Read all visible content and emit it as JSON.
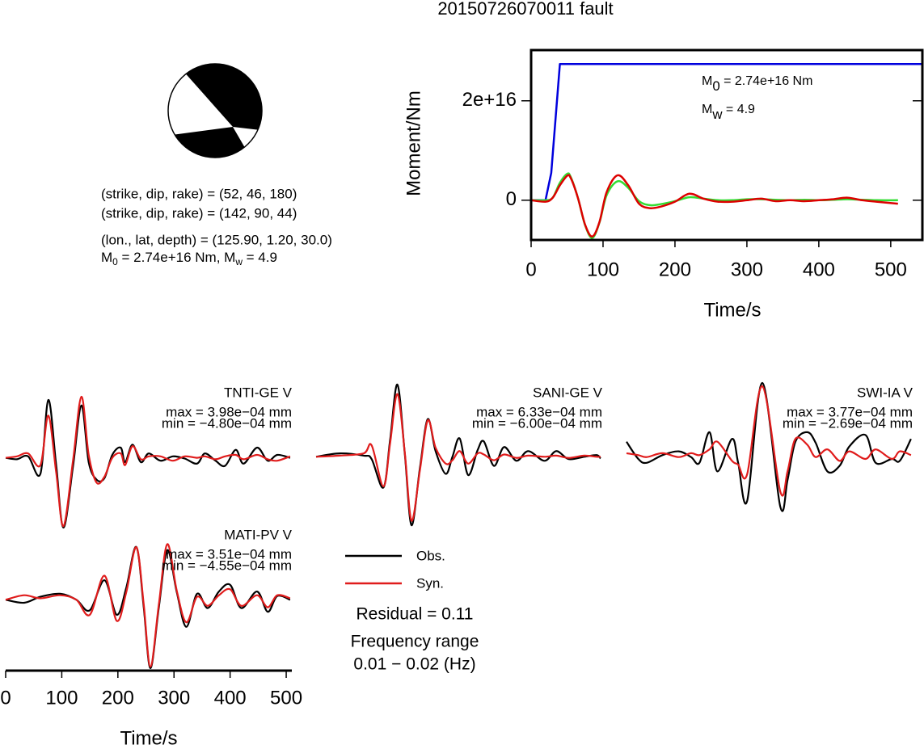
{
  "title": "20150726070011 fault",
  "mechanism": {
    "lines": [
      "(strike, dip, rake) = (52, 46, 180)",
      "(strike, dip, rake) = (142, 90, 44)",
      "(lon., lat, depth) = (125.90, 1.20, 30.0)"
    ],
    "moment_text": [
      "M",
      "0",
      " = 2.74e+16 Nm, M",
      "w",
      " = 4.9"
    ]
  },
  "residual": "Residual = 0.11",
  "frequency_title": "Frequency range",
  "frequency_range": "0.01 − 0.02 (Hz)",
  "chart_data": [
    {
      "type": "line",
      "xlabel": "Time/s",
      "ylabel": "Moment/Nm",
      "xlim": [
        0,
        544
      ],
      "xticks": [
        0,
        100,
        200,
        300,
        400,
        500
      ],
      "ylim": [
        -8000000000000000.0,
        3.02e+16
      ],
      "yticks": [
        0,
        {
          "value": 2e+16,
          "label": "2e+16"
        }
      ],
      "annotation": [
        [
          "M",
          "0",
          " = 2.74e+16 Nm"
        ],
        [
          "M",
          "w",
          " = 4.9"
        ]
      ],
      "series": [
        {
          "color": "#0000dd",
          "smooth": false,
          "x": [
            0,
            20,
            28,
            40,
            544
          ],
          "values": [
            0,
            0,
            5500000000000000.0,
            2.74e+16,
            2.74e+16
          ]
        },
        {
          "color": "#33dd33",
          "smooth": true,
          "x": [
            0,
            20,
            30,
            40,
            50,
            55,
            65,
            75,
            85,
            95,
            105,
            120,
            135,
            150,
            165,
            180,
            200,
            220,
            240,
            260,
            280,
            300,
            320,
            340,
            360,
            380,
            400,
            420,
            440,
            460,
            480,
            510
          ],
          "values": [
            0,
            0,
            500000000000000.0,
            3500000000000000.0,
            5300000000000000.0,
            4700000000000000.0,
            500000000000000.0,
            -5000000000000000.0,
            -7600000000000000.0,
            -4500000000000000.0,
            1000000000000000.0,
            3800000000000000.0,
            2500000000000000.0,
            -200000000000000.0,
            -1000000000000000.0,
            -800000000000000.0,
            -200000000000000.0,
            600000000000000.0,
            300000000000000.0,
            0,
            0,
            200000000000000.0,
            200000000000000.0,
            100000000000000.0,
            0,
            100000000000000.0,
            0,
            100000000000000.0,
            200000000000000.0,
            100000000000000.0,
            0,
            0
          ]
        },
        {
          "color": "#dd0000",
          "smooth": true,
          "x": [
            0,
            20,
            30,
            40,
            50,
            55,
            65,
            75,
            85,
            95,
            105,
            120,
            135,
            150,
            165,
            180,
            200,
            220,
            240,
            260,
            280,
            300,
            320,
            340,
            360,
            380,
            400,
            420,
            440,
            460,
            480,
            510
          ],
          "values": [
            0,
            -300000000000000.0,
            500000000000000.0,
            3000000000000000.0,
            4900000000000000.0,
            4500000000000000.0,
            500000000000000.0,
            -4900000000000000.0,
            -7300000000000000.0,
            -4400000000000000.0,
            1600000000000000.0,
            5000000000000000.0,
            3000000000000000.0,
            -700000000000000.0,
            -1600000000000000.0,
            -1300000000000000.0,
            -300000000000000.0,
            1300000000000000.0,
            300000000000000.0,
            -300000000000000.0,
            -300000000000000.0,
            0,
            300000000000000.0,
            -200000000000000.0,
            0,
            -200000000000000.0,
            0,
            200000000000000.0,
            500000000000000.0,
            0,
            -300000000000000.0,
            -700000000000000.0
          ]
        }
      ]
    },
    {
      "type": "waveform",
      "label": "TNTI-GE V",
      "max_text": "max = 3.98e−04 mm",
      "min_text": "min = −4.80e−04 mm",
      "xlim": [
        0,
        510
      ],
      "ylim": [
        -0.00048,
        0.000398
      ],
      "x": [
        0,
        20,
        40,
        62,
        76,
        90,
        103,
        120,
        135,
        148,
        162,
        176,
        190,
        205,
        213,
        226,
        241,
        255,
        276,
        298,
        319,
        341,
        355,
        374,
        391,
        410,
        424,
        448,
        467,
        484,
        507
      ],
      "series": [
        {
          "name": "Obs.",
          "color": "#000000",
          "values": [
            0,
            -1e-05,
            1e-05,
            -0.00011,
            0.000398,
            -5e-05,
            -0.00048,
            -6e-05,
            0.00036,
            -3e-05,
            -0.00015,
            -0.00014,
            2e-05,
            7e-05,
            -3e-05,
            9e-05,
            -3e-05,
            3e-05,
            -2e-05,
            1e-05,
            -5e-06,
            -4e-05,
            3e-05,
            -2e-05,
            -5.5e-05,
            5.5e-05,
            -4e-05,
            7e-05,
            -2e-05,
            2e-05,
            0
          ]
        },
        {
          "name": "Syn.",
          "color": "#e01c1c",
          "values": [
            0,
            1e-05,
            3e-05,
            -5e-05,
            0.00029,
            -0.0001,
            -0.00047,
            -2e-05,
            0.00042,
            2e-05,
            -0.00017,
            -0.00013,
            0,
            3e-05,
            -5e-05,
            8e-05,
            -1e-05,
            1e-05,
            1e-05,
            -2e-05,
            1e-05,
            0,
            1e-05,
            -1e-05,
            1e-05,
            2e-05,
            -1e-05,
            2e-05,
            -1e-05,
            -2e-05,
            1e-05
          ]
        }
      ]
    },
    {
      "type": "waveform",
      "label": "SANI-GE V",
      "max_text": "max = 6.33e−04 mm",
      "min_text": "min = −6.00e−04 mm",
      "xlim": [
        0,
        510
      ],
      "ylim": [
        -0.0006,
        0.000633
      ],
      "x": [
        0,
        42,
        85,
        99,
        120,
        132,
        145,
        158,
        170,
        185,
        199,
        213,
        231,
        243,
        256,
        271,
        288,
        299,
        317,
        335,
        357,
        378,
        407,
        428,
        450,
        478,
        500,
        507
      ],
      "series": [
        {
          "name": "Obs.",
          "color": "#000000",
          "values": [
            0,
            3e-05,
            1e-05,
            -2e-05,
            -0.00027,
            0.00015,
            0.000633,
            3e-05,
            -0.0006,
            -0.0001,
            0.00033,
            5e-05,
            -0.00015,
            0,
            0.00016,
            -0.00016,
            6e-05,
            0.000135,
            -8e-05,
            8.5e-05,
            -3.5e-05,
            5e-05,
            -3.5e-05,
            5e-05,
            -2e-05,
            0,
            1.5e-05,
            -1.5e-05
          ]
        },
        {
          "name": "Syn.",
          "color": "#e01c1c",
          "values": [
            0,
            1e-05,
            3e-05,
            0.0001,
            -0.00026,
            0.00012,
            0.00055,
            4e-05,
            -0.00056,
            -0.00012,
            0.00032,
            8e-05,
            -6e-05,
            -3e-05,
            5e-05,
            -6e-05,
            3e-05,
            2e-05,
            -3e-05,
            2e-05,
            -1e-05,
            1e-05,
            0,
            1e-05,
            -1e-05,
            1e-05,
            0,
            0
          ]
        }
      ]
    },
    {
      "type": "waveform",
      "label": "SWI-IA V",
      "max_text": "max = 3.77e−04 mm",
      "min_text": "min = −2.69e−04 mm",
      "xlim": [
        0,
        510
      ],
      "ylim": [
        -0.000269,
        0.000377
      ],
      "x": [
        0,
        21,
        36,
        64,
        93,
        115,
        130,
        148,
        162,
        188,
        199,
        215,
        242,
        274,
        287,
        301,
        322,
        337,
        358,
        380,
        397,
        426,
        444,
        473,
        487,
        507
      ],
      "series": [
        {
          "name": "Obs.",
          "color": "#000000",
          "values": [
            7e-05,
            -2e-05,
            -4e-05,
            0,
            2e-05,
            -1e-05,
            -4e-05,
            0.00012,
            -8.5e-05,
            8.5e-05,
            -4e-05,
            -0.00024,
            0.000377,
            -0.000269,
            -0.00013,
            7e-05,
            0.00012,
            6.5e-05,
            -8.5e-05,
            -5.5e-05,
            4.5e-05,
            0.000105,
            -4e-05,
            -2e-05,
            -3e-05,
            8.5e-05
          ]
        },
        {
          "name": "Syn.",
          "color": "#e01c1c",
          "values": [
            1e-05,
            0,
            -1e-05,
            1e-05,
            -1e-05,
            1e-05,
            0,
            3e-05,
            7e-05,
            -3e-05,
            -5e-05,
            -0.0001,
            0.00036,
            -0.00019,
            -8.5e-05,
            8.5e-05,
            5.5e-05,
            -1e-05,
            3e-05,
            -3e-05,
            2e-05,
            -2e-05,
            3e-05,
            -2e-05,
            2e-05,
            0
          ]
        }
      ]
    },
    {
      "type": "waveform",
      "label": "MATI-PV V",
      "max_text": "max = 3.51e−04 mm",
      "min_text": "min = −4.55e−04 mm",
      "xlabel": "Time/s",
      "xlim": [
        0,
        510
      ],
      "xticks": [
        0,
        100,
        200,
        300,
        400,
        500
      ],
      "ylim": [
        -0.000455,
        0.000351
      ],
      "x": [
        0,
        33,
        62,
        97,
        126,
        150,
        176,
        198,
        215,
        233,
        246,
        258,
        273,
        288,
        305,
        322,
        341,
        360,
        380,
        400,
        420,
        448,
        467,
        484,
        507
      ],
      "series": [
        {
          "name": "Obs.",
          "color": "#000000",
          "values": [
            0,
            -2e-05,
            2e-05,
            4e-05,
            0,
            -7e-05,
            0.00013,
            -0.0001,
            8e-05,
            0.000351,
            -5e-05,
            -0.000455,
            -5e-05,
            0.00033,
            5e-05,
            -0.00018,
            4e-05,
            -5.5e-05,
            5.5e-05,
            0.0001,
            -5.5e-05,
            5.5e-05,
            -8e-05,
            2.5e-05,
            0
          ]
        },
        {
          "name": "Syn.",
          "color": "#e01c1c",
          "values": [
            0,
            3e-05,
            1e-05,
            3e-05,
            0,
            -0.0001,
            0.00016,
            -0.00014,
            5e-05,
            0.00035,
            -3e-05,
            -0.000445,
            -3e-05,
            0.00037,
            6e-05,
            -0.00015,
            2e-05,
            -4e-05,
            3e-05,
            7e-05,
            -4e-05,
            3e-05,
            -5e-05,
            3e-05,
            1e-05
          ]
        }
      ]
    }
  ]
}
